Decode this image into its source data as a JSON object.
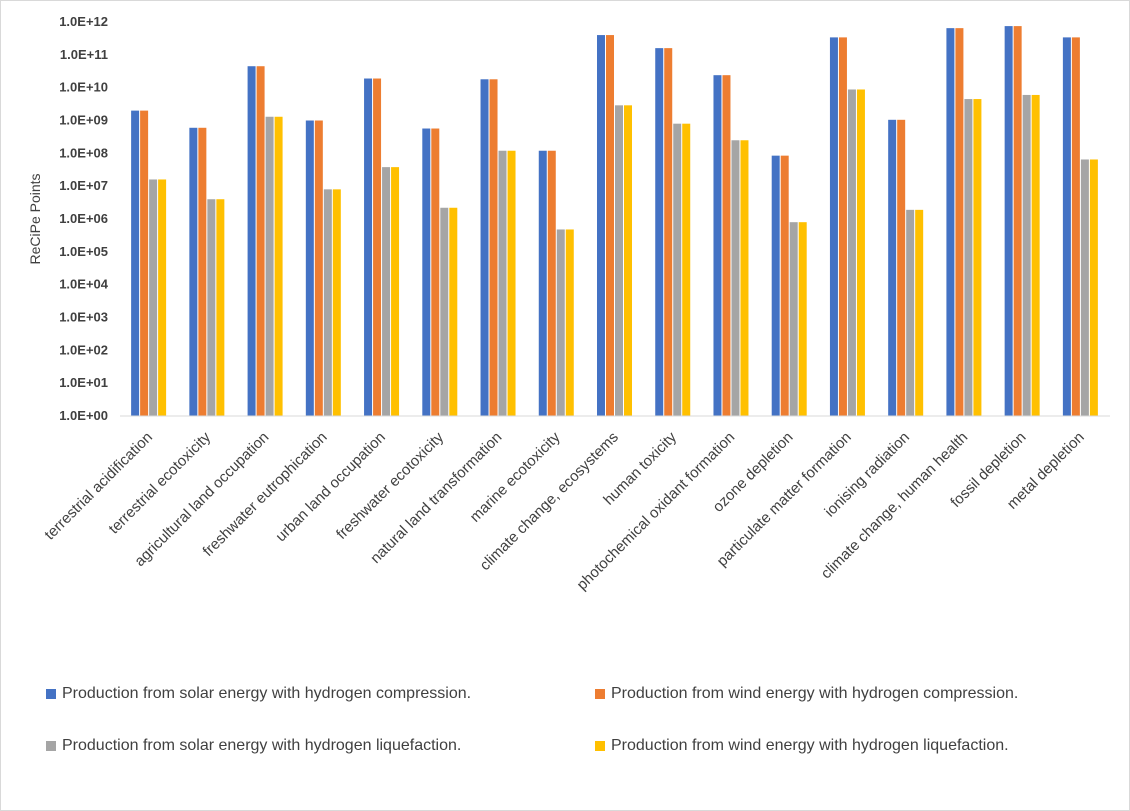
{
  "chart_data": {
    "type": "bar",
    "ylabel": "ReCiPe Points",
    "yscale": "log",
    "ylim": [
      1,
      1000000000000
    ],
    "yticks": [
      "1.0E+00",
      "1.0E+01",
      "1.0E+02",
      "1.0E+03",
      "1.0E+04",
      "1.0E+05",
      "1.0E+06",
      "1.0E+07",
      "1.0E+08",
      "1.0E+09",
      "1.0E+10",
      "1.0E+11",
      "1.0E+12"
    ],
    "grid": false,
    "legend_position": "bottom",
    "categories": [
      "terrestrial acidification",
      "terrestrial ecotoxicity",
      "agricultural land occupation",
      "freshwater eutrophication",
      "urban land occupation",
      "freshwater ecotoxicity",
      "natural land transformation",
      "marine ecotoxicity",
      "climate change, ecosystems",
      "human toxicity",
      "photochemical oxidant formation",
      "ozone depletion",
      "particulate matter formation",
      "ionising radiation",
      "climate change, human health",
      "fossil depletion",
      "metal depletion"
    ],
    "series": [
      {
        "name": "Production from solar energy with hydrogen compression.",
        "color": "#4472c4",
        "values": [
          2000000000.0,
          600000000.0,
          45000000000.0,
          1000000000.0,
          19000000000.0,
          570000000.0,
          18000000000.0,
          120000000.0,
          400000000000.0,
          160000000000.0,
          24000000000.0,
          85000000.0,
          340000000000.0,
          1050000000.0,
          650000000000.0,
          750000000000.0,
          340000000000.0
        ]
      },
      {
        "name": "Production from wind energy with hydrogen compression.",
        "color": "#ed7d31",
        "values": [
          2000000000.0,
          600000000.0,
          45000000000.0,
          1000000000.0,
          19000000000.0,
          570000000.0,
          18000000000.0,
          120000000.0,
          400000000000.0,
          160000000000.0,
          24000000000.0,
          85000000.0,
          340000000000.0,
          1050000000.0,
          650000000000.0,
          750000000000.0,
          340000000000.0
        ]
      },
      {
        "name": "Production from solar energy with hydrogen liquefaction.",
        "color": "#a5a5a5",
        "values": [
          16000000.0,
          4000000.0,
          1300000000.0,
          8000000.0,
          38000000.0,
          2200000.0,
          120000000.0,
          480000.0,
          2900000000.0,
          800000000.0,
          250000000.0,
          800000.0,
          8800000000.0,
          1900000.0,
          4500000000.0,
          6000000000.0,
          65000000.0
        ]
      },
      {
        "name": "Production from wind energy with hydrogen liquefaction.",
        "color": "#ffc000",
        "values": [
          16000000.0,
          4000000.0,
          1300000000.0,
          8000000.0,
          38000000.0,
          2200000.0,
          120000000.0,
          480000.0,
          2900000000.0,
          800000000.0,
          250000000.0,
          800000.0,
          8800000000.0,
          1900000.0,
          4500000000.0,
          6000000000.0,
          65000000.0
        ]
      }
    ]
  }
}
